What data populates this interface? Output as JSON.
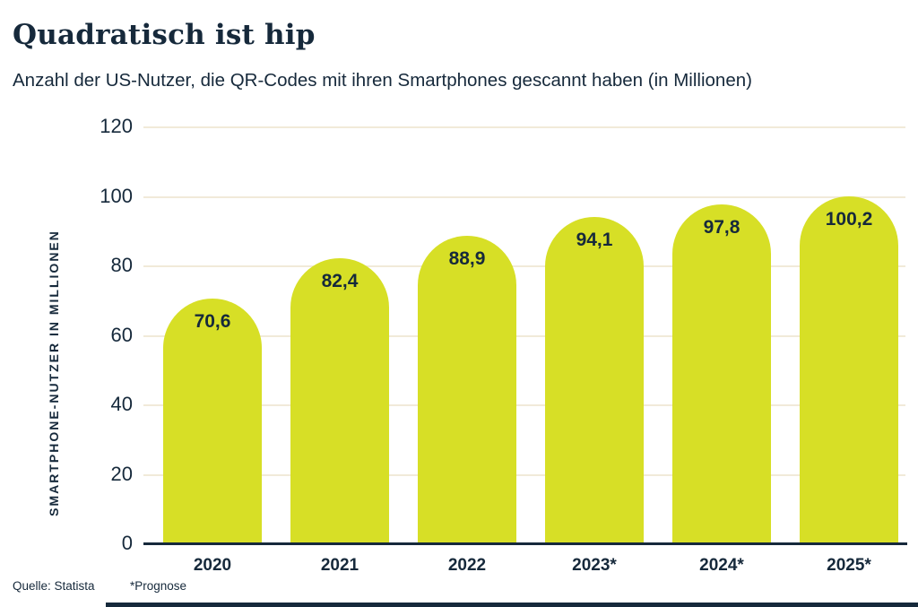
{
  "header": {
    "title": "Quadratisch ist hip",
    "subtitle": "Anzahl der US-Nutzer, die QR-Codes mit ihren Smartphones gescannt haben (in Millionen)"
  },
  "chart_data": {
    "type": "bar",
    "title": "Quadratisch ist hip",
    "subtitle": "Anzahl der US-Nutzer, die QR-Codes mit ihren Smartphones gescannt haben (in Millionen)",
    "categories": [
      "2020",
      "2021",
      "2022",
      "2023*",
      "2024*",
      "2025*"
    ],
    "values": [
      70.6,
      82.4,
      88.9,
      94.1,
      97.8,
      100.2
    ],
    "value_labels": [
      "70,6",
      "82,4",
      "88,9",
      "94,1",
      "97,8",
      "100,2"
    ],
    "ylabel": "SMARTPHONE-NUTZER IN MILLIONEN",
    "xlabel": "",
    "ylim": [
      0,
      120
    ],
    "yticks": [
      0,
      20,
      40,
      60,
      80,
      100,
      120
    ],
    "grid": true,
    "legend": false,
    "bar_color": "#d7df26",
    "text_color": "#16293b",
    "gridline_color": "#f1ead9",
    "axis_color": "#16293b"
  },
  "footer": {
    "source": "Quelle: Statista",
    "note": "*Prognose"
  }
}
